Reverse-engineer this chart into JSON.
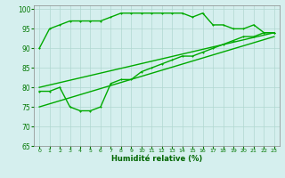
{
  "title": "",
  "xlabel": "Humidité relative (%)",
  "ylabel": "",
  "bg_color": "#d5efee",
  "grid_color": "#b0d8d0",
  "line_color": "#00aa00",
  "marker_color": "#00aa00",
  "xlim": [
    -0.5,
    23.5
  ],
  "ylim": [
    65,
    101
  ],
  "yticks": [
    65,
    70,
    75,
    80,
    85,
    90,
    95,
    100
  ],
  "xticks": [
    0,
    1,
    2,
    3,
    4,
    5,
    6,
    7,
    8,
    9,
    10,
    11,
    12,
    13,
    14,
    15,
    16,
    17,
    18,
    19,
    20,
    21,
    22,
    23
  ],
  "series": [
    {
      "x": [
        0,
        1,
        2,
        3,
        4,
        5,
        6,
        7,
        8,
        9,
        10,
        11,
        12,
        13,
        14,
        15,
        16,
        17,
        18,
        19,
        20,
        21,
        22,
        23
      ],
      "y": [
        90,
        95,
        96,
        97,
        97,
        97,
        97,
        98,
        99,
        99,
        99,
        99,
        99,
        99,
        99,
        98,
        99,
        96,
        96,
        95,
        95,
        96,
        94,
        94
      ],
      "has_marker": true,
      "markersize": 2.0,
      "linewidth": 1.0
    },
    {
      "x": [
        0,
        1,
        2,
        3,
        4,
        5,
        6,
        7,
        8,
        9,
        10,
        11,
        12,
        13,
        14,
        15,
        16,
        17,
        18,
        19,
        20,
        21,
        22,
        23
      ],
      "y": [
        79,
        79,
        80,
        75,
        74,
        74,
        75,
        81,
        82,
        82,
        84,
        85,
        86,
        87,
        88,
        88,
        89,
        90,
        91,
        92,
        93,
        93,
        94,
        94
      ],
      "has_marker": true,
      "markersize": 2.0,
      "linewidth": 1.0
    },
    {
      "x": [
        0,
        23
      ],
      "y": [
        80,
        94
      ],
      "has_marker": false,
      "markersize": 0,
      "linewidth": 1.0
    },
    {
      "x": [
        0,
        23
      ],
      "y": [
        75,
        93
      ],
      "has_marker": false,
      "markersize": 0,
      "linewidth": 1.0
    }
  ]
}
